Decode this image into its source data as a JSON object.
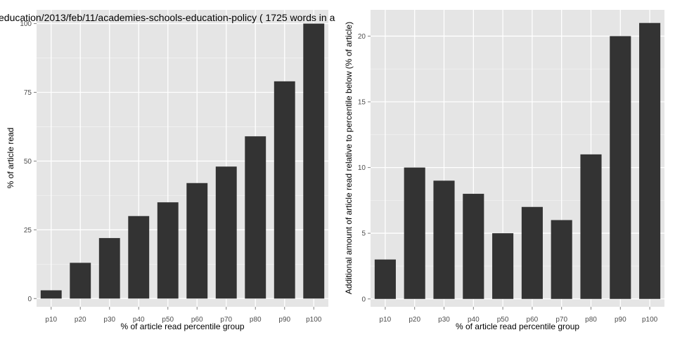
{
  "colors": {
    "panel_background": "#e5e5e5",
    "grid_major": "#ffffff",
    "grid_minor": "#f2f2f2",
    "bar_fill": "#333333",
    "tick_text": "#4d4d4d",
    "title_text": "#000000"
  },
  "chart_data": [
    {
      "type": "bar",
      "title": "education/2013/feb/11/academies-schools-education-policy ( 1725 words in a",
      "xlabel": "% of article read percentile group",
      "ylabel": "% of article read",
      "categories": [
        "p10",
        "p20",
        "p30",
        "p40",
        "p50",
        "p60",
        "p70",
        "p80",
        "p90",
        "p100"
      ],
      "values": [
        3,
        13,
        22,
        30,
        35,
        42,
        48,
        59,
        79,
        100
      ],
      "ylim": [
        -3,
        105
      ],
      "yticks": [
        0,
        25,
        50,
        75,
        100
      ],
      "grid": true,
      "legend": "none"
    },
    {
      "type": "bar",
      "title": "",
      "xlabel": "% of article read percentile group",
      "ylabel": "Additional amount of article read relative to percentile below (% of article)",
      "categories": [
        "p10",
        "p20",
        "p30",
        "p40",
        "p50",
        "p60",
        "p70",
        "p80",
        "p90",
        "p100"
      ],
      "values": [
        3,
        10,
        9,
        8,
        5,
        7,
        6,
        11,
        20,
        21
      ],
      "ylim": [
        -0.6,
        22
      ],
      "yticks": [
        0,
        5,
        10,
        15,
        20
      ],
      "grid": true,
      "legend": "none"
    }
  ]
}
